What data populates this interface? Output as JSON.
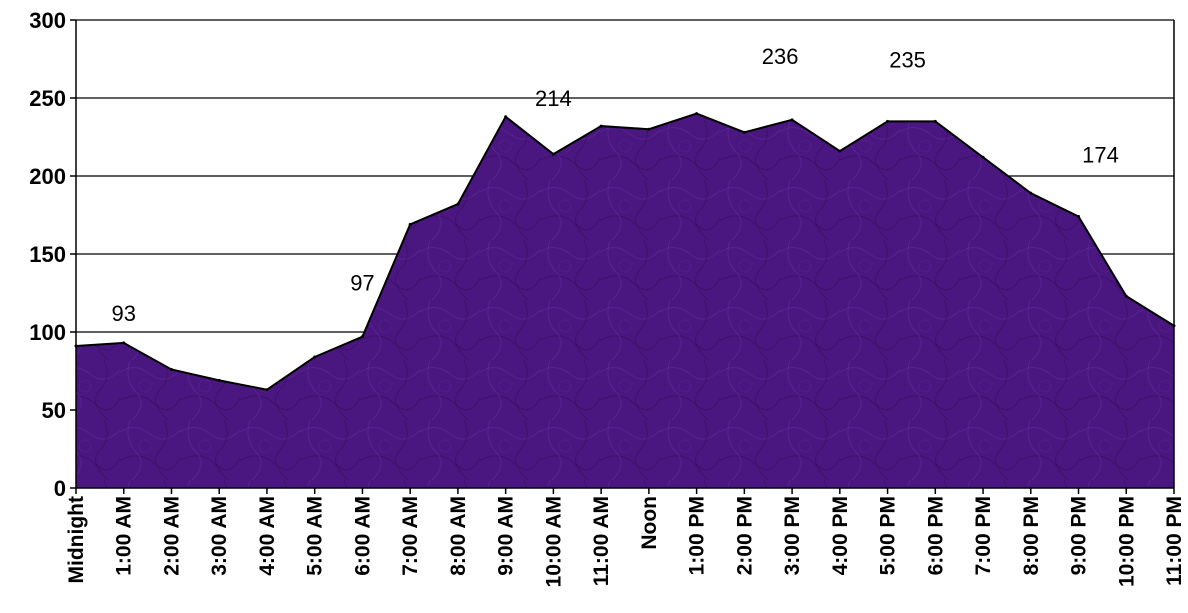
{
  "chart_data": {
    "type": "area",
    "title": "",
    "xlabel": "",
    "ylabel": "",
    "ylim": [
      0,
      300
    ],
    "yticks": [
      0,
      50,
      100,
      150,
      200,
      250,
      300
    ],
    "grid": true,
    "fill_color": "#4a1680",
    "line_color": "#000000",
    "categories": [
      "Midnight",
      "1:00 AM",
      "2:00 AM",
      "3:00 AM",
      "4:00 AM",
      "5:00 AM",
      "6:00 AM",
      "7:00 AM",
      "8:00 AM",
      "9:00 AM",
      "10:00 AM",
      "11:00 AM",
      "Noon",
      "1:00 PM",
      "2:00 PM",
      "3:00 PM",
      "4:00 PM",
      "5:00 PM",
      "6:00 PM",
      "7:00 PM",
      "8:00 PM",
      "9:00 PM",
      "10:00 PM",
      "11:00 PM"
    ],
    "values": [
      91,
      93,
      76,
      69,
      63,
      84,
      97,
      169,
      182,
      238,
      214,
      232,
      230,
      240,
      228,
      236,
      216,
      235,
      235,
      212,
      189,
      174,
      123,
      104
    ],
    "data_labels": [
      {
        "index": 1,
        "text": "93"
      },
      {
        "index": 6,
        "text": "97"
      },
      {
        "index": 10,
        "text": "214"
      },
      {
        "index": 15,
        "text": "236"
      },
      {
        "index": 17,
        "text": "235"
      },
      {
        "index": 21,
        "text": "174"
      }
    ]
  }
}
